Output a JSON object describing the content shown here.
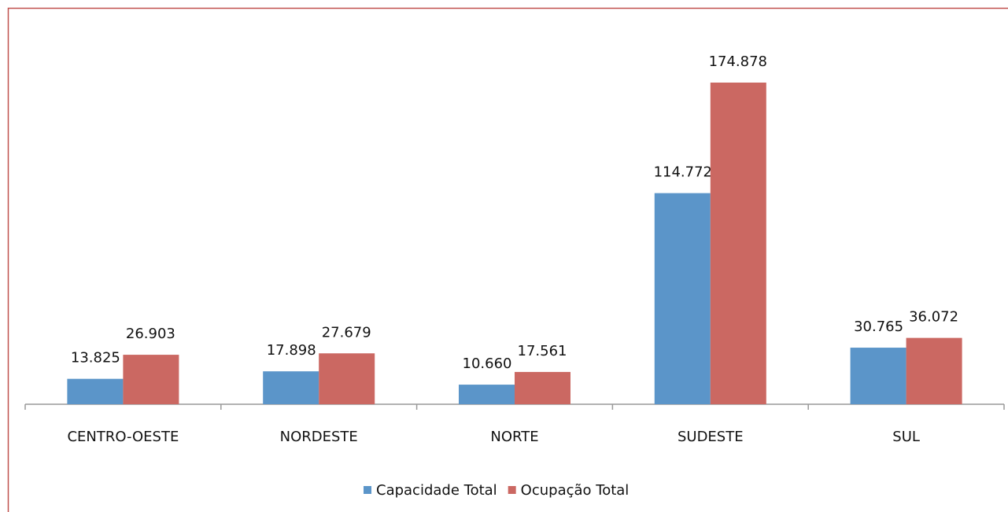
{
  "chart_data": {
    "type": "bar",
    "categories": [
      "CENTRO-OESTE",
      "NORDESTE",
      "NORTE",
      "SUDESTE",
      "SUL"
    ],
    "series": [
      {
        "name": "Capacidade Total",
        "color": "#5b95c9",
        "values": [
          13825,
          17898,
          10660,
          114772,
          30765
        ],
        "value_labels": [
          "13.825",
          "17.898",
          "10.660",
          "114.772",
          "30.765"
        ]
      },
      {
        "name": "Ocupação Total",
        "color": "#cb6862",
        "values": [
          26903,
          27679,
          17561,
          174878,
          36072
        ],
        "value_labels": [
          "26.903",
          "27.679",
          "17.561",
          "174.878",
          "36.072"
        ]
      }
    ],
    "legend": "bottom"
  }
}
